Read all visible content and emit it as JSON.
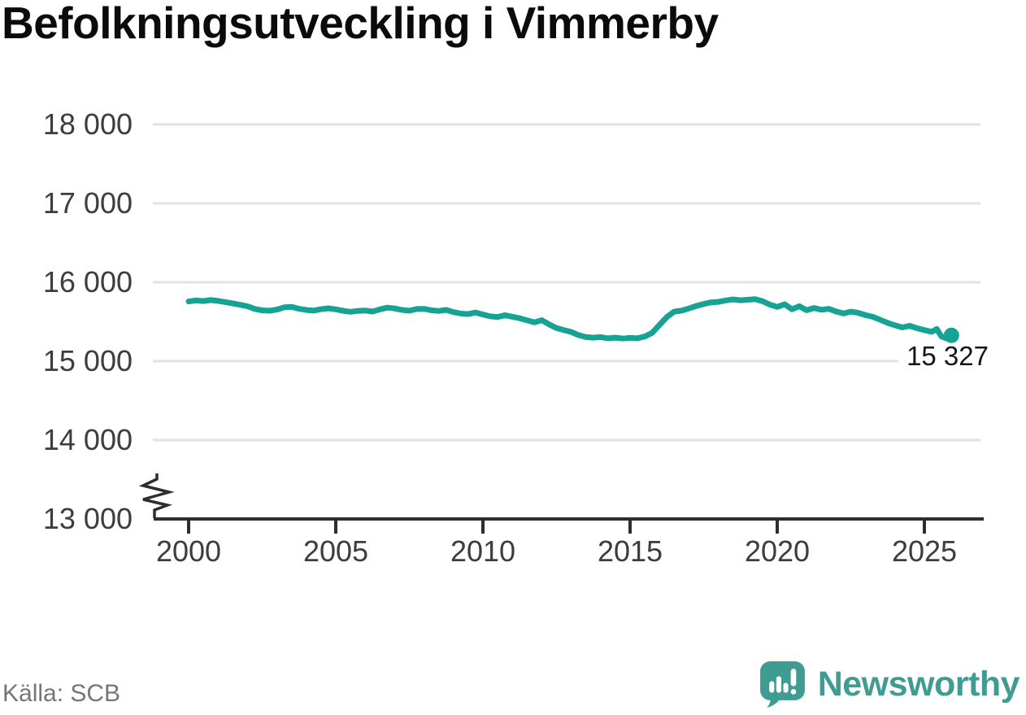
{
  "title": "Befolkningsutveckling i Vimmerby",
  "source": "Källa: SCB",
  "logo": {
    "text": "Newsworthy",
    "icon": "speech-bubble-bar-chart-exclamation"
  },
  "colors": {
    "line": "#16a294",
    "grid": "#e2e2e2",
    "axis": "#2e2e2e",
    "tick_label": "#3d3d3d",
    "annotation": "#161616",
    "source": "#767676",
    "logo": "#3f9c93"
  },
  "chart_data": {
    "type": "line",
    "title": "Befolkningsutveckling i Vimmerby",
    "xlabel": "",
    "ylabel": "",
    "grid": "horizontal",
    "legend": "none",
    "axis_break_bottom_left": true,
    "xlim": [
      1998.8,
      2027.0
    ],
    "ylim": [
      13000,
      18000
    ],
    "x_ticks": [
      {
        "v": 2000,
        "label": "2000"
      },
      {
        "v": 2005,
        "label": "2005"
      },
      {
        "v": 2010,
        "label": "2010"
      },
      {
        "v": 2015,
        "label": "2015"
      },
      {
        "v": 2020,
        "label": "2020"
      },
      {
        "v": 2025,
        "label": "2025"
      }
    ],
    "y_ticks": [
      {
        "v": 18000,
        "label": "18 000"
      },
      {
        "v": 17000,
        "label": "17 000"
      },
      {
        "v": 16000,
        "label": "16 000"
      },
      {
        "v": 15000,
        "label": "15 000"
      },
      {
        "v": 14000,
        "label": "14 000"
      },
      {
        "v": 13000,
        "label": "13 000"
      }
    ],
    "end_label": "15 327",
    "end_value": 15327,
    "series": [
      {
        "points": [
          [
            2000.0,
            15757
          ],
          [
            2000.25,
            15770
          ],
          [
            2000.5,
            15762
          ],
          [
            2000.75,
            15774
          ],
          [
            2001.0,
            15764
          ],
          [
            2001.25,
            15748
          ],
          [
            2001.5,
            15732
          ],
          [
            2001.75,
            15714
          ],
          [
            2002.0,
            15695
          ],
          [
            2002.25,
            15662
          ],
          [
            2002.5,
            15644
          ],
          [
            2002.75,
            15639
          ],
          [
            2003.0,
            15654
          ],
          [
            2003.25,
            15682
          ],
          [
            2003.5,
            15689
          ],
          [
            2003.75,
            15664
          ],
          [
            2004.0,
            15648
          ],
          [
            2004.25,
            15641
          ],
          [
            2004.5,
            15659
          ],
          [
            2004.75,
            15670
          ],
          [
            2005.0,
            15657
          ],
          [
            2005.25,
            15638
          ],
          [
            2005.5,
            15626
          ],
          [
            2005.75,
            15637
          ],
          [
            2006.0,
            15641
          ],
          [
            2006.25,
            15629
          ],
          [
            2006.5,
            15657
          ],
          [
            2006.75,
            15678
          ],
          [
            2007.0,
            15668
          ],
          [
            2007.25,
            15649
          ],
          [
            2007.5,
            15639
          ],
          [
            2007.75,
            15661
          ],
          [
            2008.0,
            15663
          ],
          [
            2008.25,
            15644
          ],
          [
            2008.5,
            15636
          ],
          [
            2008.75,
            15649
          ],
          [
            2009.0,
            15622
          ],
          [
            2009.25,
            15603
          ],
          [
            2009.5,
            15597
          ],
          [
            2009.75,
            15616
          ],
          [
            2010.0,
            15592
          ],
          [
            2010.25,
            15568
          ],
          [
            2010.5,
            15560
          ],
          [
            2010.75,
            15582
          ],
          [
            2011.0,
            15563
          ],
          [
            2011.25,
            15544
          ],
          [
            2011.5,
            15518
          ],
          [
            2011.75,
            15492
          ],
          [
            2012.0,
            15520
          ],
          [
            2012.25,
            15465
          ],
          [
            2012.5,
            15420
          ],
          [
            2012.75,
            15395
          ],
          [
            2013.0,
            15370
          ],
          [
            2013.25,
            15330
          ],
          [
            2013.5,
            15305
          ],
          [
            2013.75,
            15298
          ],
          [
            2014.0,
            15305
          ],
          [
            2014.25,
            15290
          ],
          [
            2014.5,
            15298
          ],
          [
            2014.75,
            15287
          ],
          [
            2015.0,
            15295
          ],
          [
            2015.25,
            15290
          ],
          [
            2015.5,
            15312
          ],
          [
            2015.75,
            15360
          ],
          [
            2016.0,
            15460
          ],
          [
            2016.25,
            15560
          ],
          [
            2016.5,
            15628
          ],
          [
            2016.75,
            15640
          ],
          [
            2017.0,
            15668
          ],
          [
            2017.25,
            15700
          ],
          [
            2017.5,
            15725
          ],
          [
            2017.75,
            15745
          ],
          [
            2018.0,
            15752
          ],
          [
            2018.25,
            15770
          ],
          [
            2018.5,
            15782
          ],
          [
            2018.75,
            15772
          ],
          [
            2019.0,
            15778
          ],
          [
            2019.25,
            15786
          ],
          [
            2019.5,
            15760
          ],
          [
            2019.75,
            15716
          ],
          [
            2020.0,
            15688
          ],
          [
            2020.25,
            15722
          ],
          [
            2020.5,
            15658
          ],
          [
            2020.75,
            15696
          ],
          [
            2021.0,
            15645
          ],
          [
            2021.25,
            15674
          ],
          [
            2021.5,
            15652
          ],
          [
            2021.75,
            15663
          ],
          [
            2022.0,
            15630
          ],
          [
            2022.25,
            15604
          ],
          [
            2022.5,
            15628
          ],
          [
            2022.75,
            15612
          ],
          [
            2023.0,
            15584
          ],
          [
            2023.25,
            15562
          ],
          [
            2023.5,
            15524
          ],
          [
            2023.75,
            15486
          ],
          [
            2024.0,
            15455
          ],
          [
            2024.25,
            15428
          ],
          [
            2024.5,
            15448
          ],
          [
            2024.75,
            15418
          ],
          [
            2025.0,
            15394
          ],
          [
            2025.25,
            15372
          ],
          [
            2025.42,
            15408
          ],
          [
            2025.58,
            15312
          ],
          [
            2025.75,
            15290
          ],
          [
            2025.92,
            15327
          ]
        ]
      }
    ]
  }
}
